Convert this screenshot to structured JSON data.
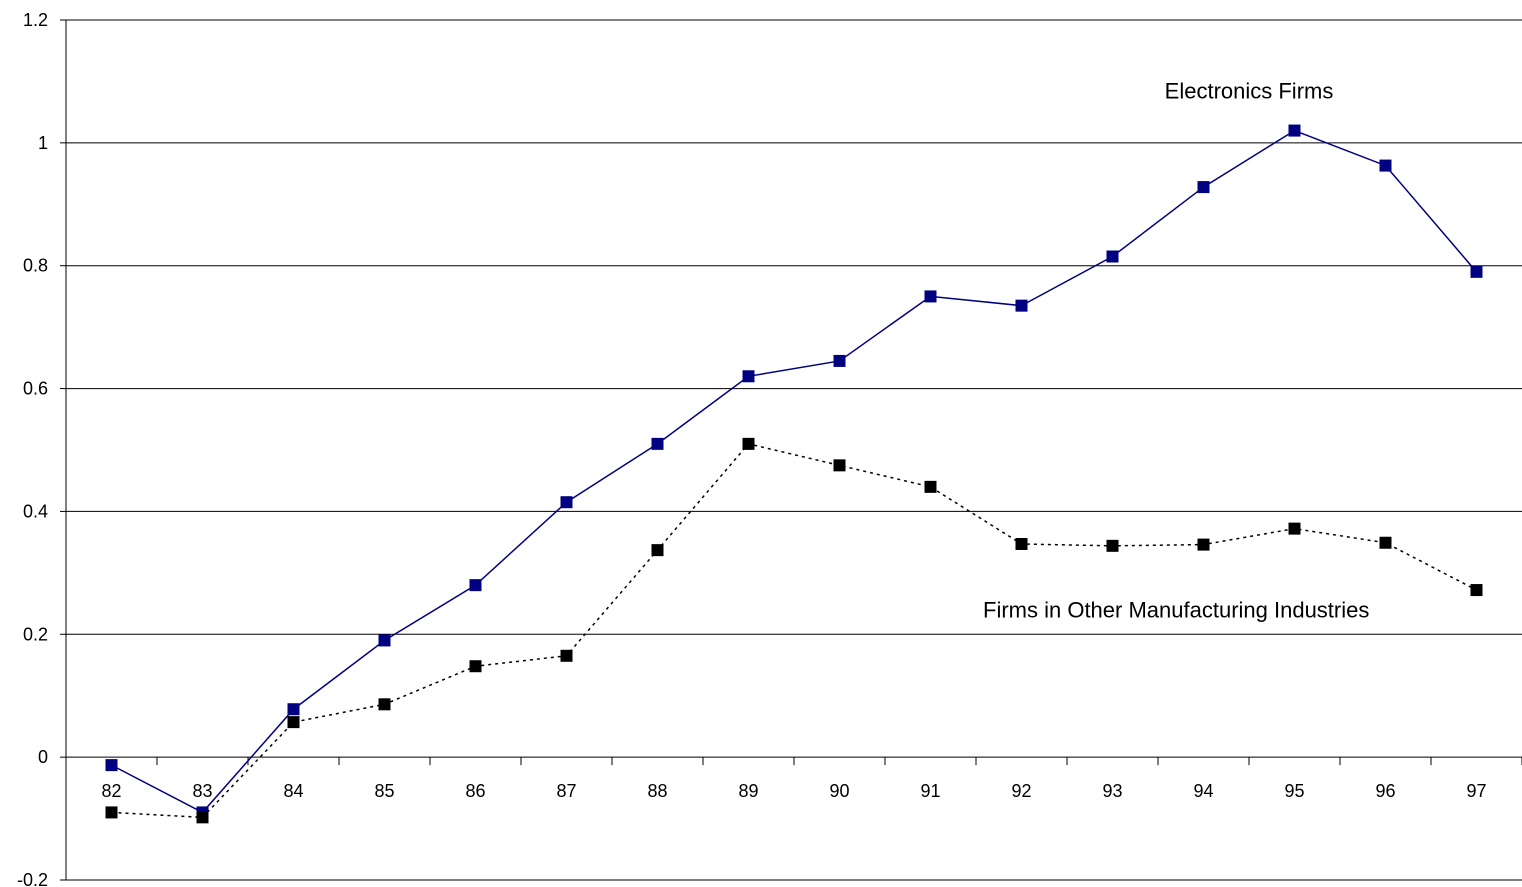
{
  "chart_data": {
    "type": "line",
    "categories": [
      "82",
      "83",
      "84",
      "85",
      "86",
      "87",
      "88",
      "89",
      "90",
      "91",
      "92",
      "93",
      "94",
      "95",
      "96",
      "97"
    ],
    "y_ticks": [
      "1.2",
      "1",
      "0.8",
      "0.6",
      "0.4",
      "0.2",
      "0",
      "-0.2"
    ],
    "ylim": [
      -0.2,
      1.2
    ],
    "grid": true,
    "series": [
      {
        "name": "Electronics Firms",
        "color": "#000080",
        "line_style": "solid",
        "values": [
          -0.013,
          -0.09,
          0.078,
          0.19,
          0.28,
          0.415,
          0.51,
          0.62,
          0.645,
          0.75,
          0.735,
          0.815,
          0.928,
          1.02,
          0.963,
          0.79
        ]
      },
      {
        "name": "Firms in Other Manufacturing Industries",
        "color": "#000000",
        "line_style": "dotted",
        "values": [
          -0.09,
          -0.098,
          0.057,
          0.086,
          0.148,
          0.165,
          0.337,
          0.51,
          0.475,
          0.44,
          0.347,
          0.344,
          0.346,
          0.372,
          0.349,
          0.272
        ]
      }
    ],
    "annotations": [
      {
        "text": "Electronics Firms",
        "x": "94.5",
        "y": 1.085
      },
      {
        "text": "Firms in Other Manufacturing Industries",
        "x": "93.7",
        "y": 0.24
      }
    ]
  }
}
